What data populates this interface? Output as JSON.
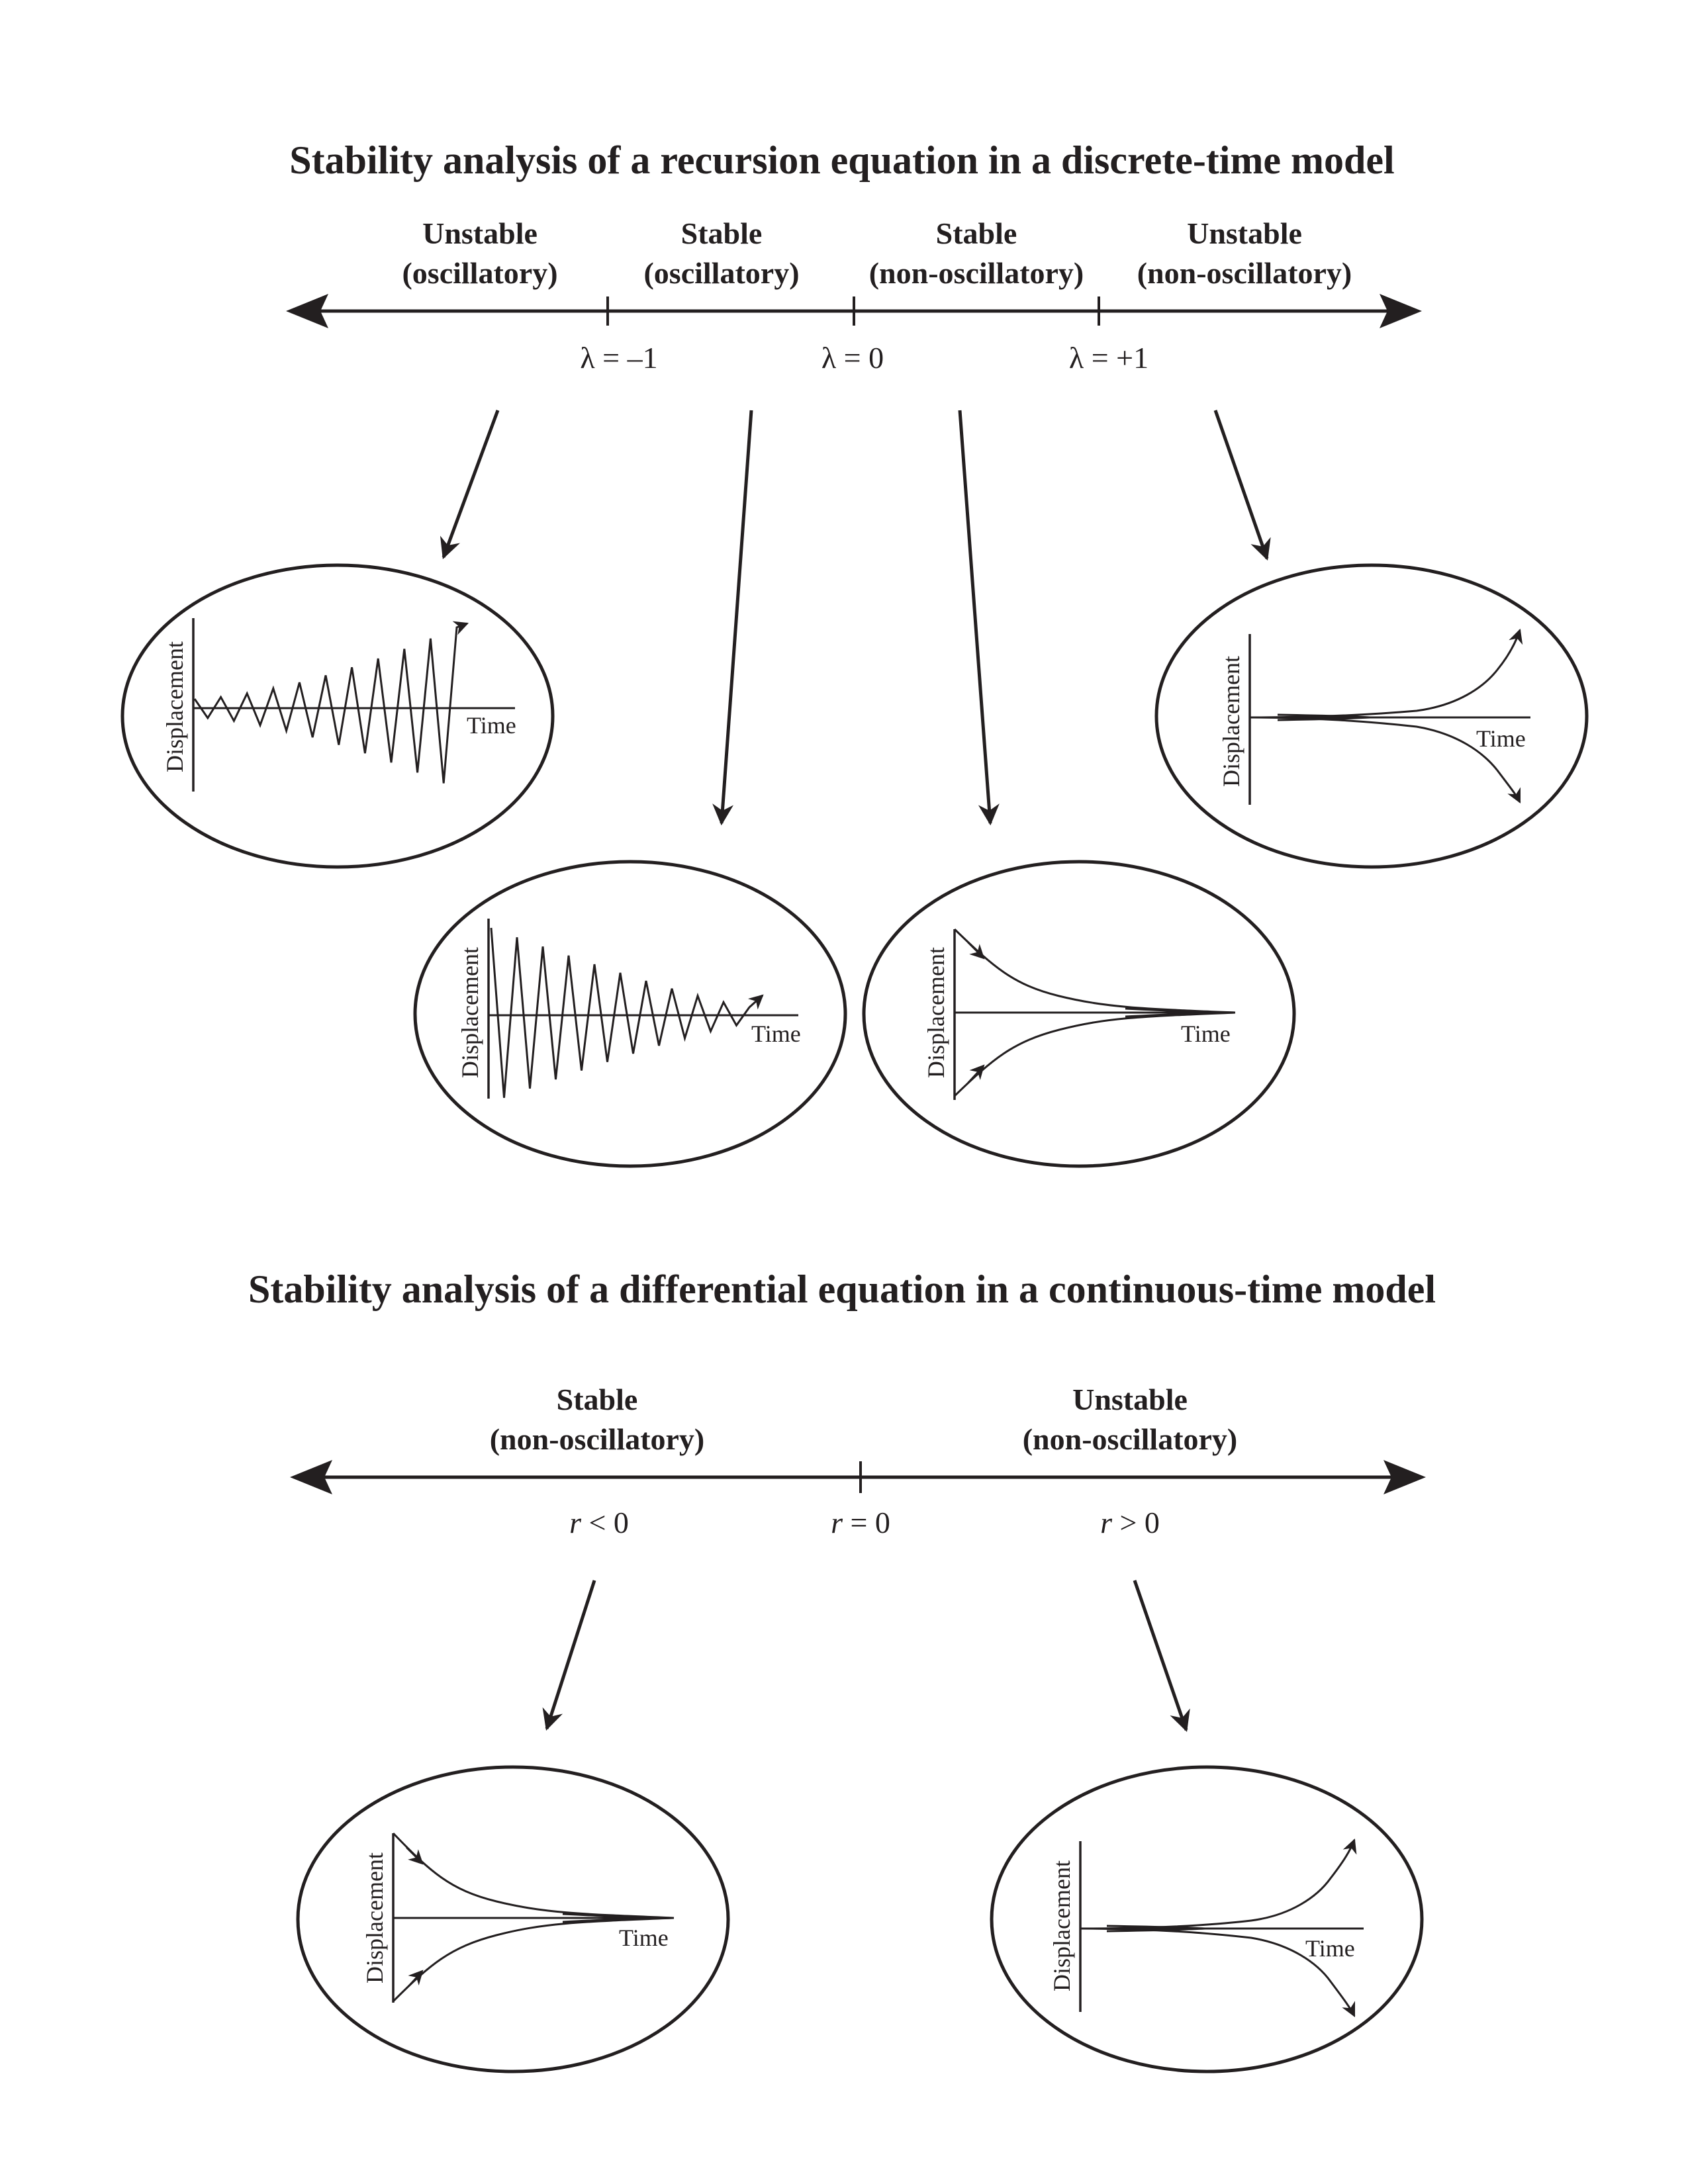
{
  "discrete": {
    "title": "Stability analysis of a recursion equation in a discrete-time model",
    "regions": [
      {
        "line1": "Unstable",
        "line2": "(oscillatory)"
      },
      {
        "line1": "Stable",
        "line2": "(oscillatory)"
      },
      {
        "line1": "Stable",
        "line2": "(non-oscillatory)"
      },
      {
        "line1": "Unstable",
        "line2": "(non-oscillatory)"
      }
    ],
    "ticks": [
      {
        "symbol": "λ",
        "rest": " = –1"
      },
      {
        "symbol": "λ",
        "rest": " = 0"
      },
      {
        "symbol": "λ",
        "rest": " = +1"
      }
    ]
  },
  "continuous": {
    "title": "Stability analysis of a differential equation in a continuous-time model",
    "regions": [
      {
        "line1": "Stable",
        "line2": "(non-oscillatory)"
      },
      {
        "line1": "Unstable",
        "line2": "(non-oscillatory)"
      }
    ],
    "ticks": [
      {
        "symbol": "r",
        "rest": " < 0"
      },
      {
        "symbol": "r",
        "rest": " = 0"
      },
      {
        "symbol": "r",
        "rest": " > 0"
      }
    ]
  },
  "plots": {
    "y_label": "Displacement",
    "x_label": "Time"
  }
}
